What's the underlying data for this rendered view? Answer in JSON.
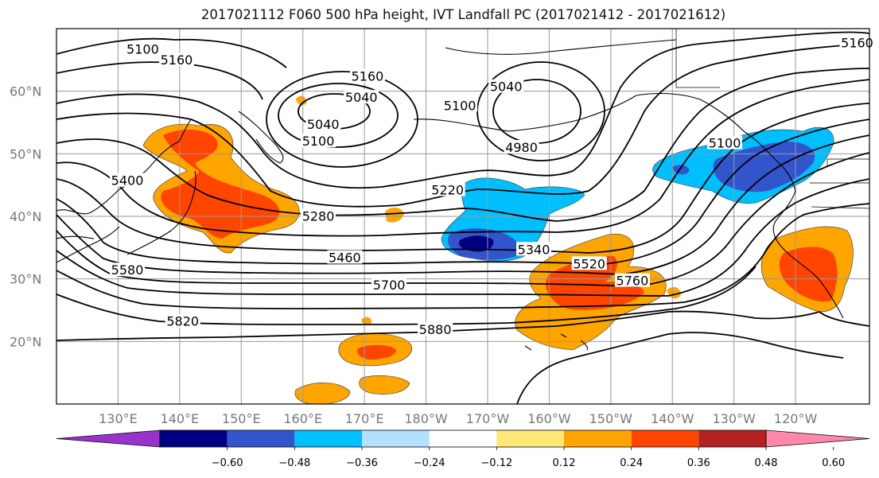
{
  "title": "2017021112 F060 500 hPa height, IVT Landfall PC (2017021412 - 2017021612)",
  "lat_ticks": [
    {
      "label": "60°N",
      "lat": 60
    },
    {
      "label": "50°N",
      "lat": 50
    },
    {
      "label": "40°N",
      "lat": 40
    },
    {
      "label": "30°N",
      "lat": 30
    },
    {
      "label": "20°N",
      "lat": 20
    }
  ],
  "lon_ticks": [
    {
      "label": "130°E",
      "lon": 130
    },
    {
      "label": "140°E",
      "lon": 140
    },
    {
      "label": "150°E",
      "lon": 150
    },
    {
      "label": "160°E",
      "lon": 160
    },
    {
      "label": "170°E",
      "lon": 170
    },
    {
      "label": "180°W",
      "lon": 180
    },
    {
      "label": "170°W",
      "lon": 190
    },
    {
      "label": "160°W",
      "lon": 200
    },
    {
      "label": "150°W",
      "lon": 210
    },
    {
      "label": "140°W",
      "lon": 220
    },
    {
      "label": "130°W",
      "lon": 230
    },
    {
      "label": "120°W",
      "lon": 240
    }
  ],
  "map_extent": {
    "lon_min": 120,
    "lon_max": 252,
    "lat_min": 10,
    "lat_max": 70
  },
  "contour_labels": [
    {
      "text": "5100",
      "lon": 134,
      "lat": 66.5
    },
    {
      "text": "5160",
      "lon": 139.5,
      "lat": 64.8
    },
    {
      "text": "5160",
      "lon": 170.5,
      "lat": 62.2
    },
    {
      "text": "5040",
      "lon": 169.5,
      "lat": 58.8
    },
    {
      "text": "5040",
      "lon": 163.3,
      "lat": 54.5
    },
    {
      "text": "5100",
      "lon": 162.5,
      "lat": 51.8
    },
    {
      "text": "5100",
      "lon": 185.5,
      "lat": 57.5
    },
    {
      "text": "4980",
      "lon": 195.5,
      "lat": 50.8
    },
    {
      "text": "5400",
      "lon": 131.5,
      "lat": 45.5
    },
    {
      "text": "5220",
      "lon": 183.5,
      "lat": 44
    },
    {
      "text": "5280",
      "lon": 162.5,
      "lat": 39.8
    },
    {
      "text": "5460",
      "lon": 166.8,
      "lat": 33.2
    },
    {
      "text": "5340",
      "lon": 197.5,
      "lat": 34.5
    },
    {
      "text": "5520",
      "lon": 206.5,
      "lat": 32.2
    },
    {
      "text": "5580",
      "lon": 131.5,
      "lat": 31.2
    },
    {
      "text": "5700",
      "lon": 174,
      "lat": 28.8
    },
    {
      "text": "5760",
      "lon": 213.5,
      "lat": 29.5
    },
    {
      "text": "5820",
      "lon": 140.5,
      "lat": 23
    },
    {
      "text": "5880",
      "lon": 181.5,
      "lat": 21.7
    },
    {
      "text": "5040",
      "lon": 193,
      "lat": 60.5
    },
    {
      "text": "5160",
      "lon": 250,
      "lat": 67.5
    },
    {
      "text": "5100",
      "lon": 228.5,
      "lat": 51.5
    }
  ],
  "colorbar": {
    "ticks": [
      "−0.60",
      "−0.48",
      "−0.36",
      "−0.24",
      "−0.12",
      "0.12",
      "0.24",
      "0.36",
      "0.48",
      "0.60"
    ],
    "colors": [
      "#9933cc",
      "#000080",
      "#3355cc",
      "#00bfff",
      "#b3e0ff",
      "#ffffff",
      "#ffe87a",
      "#ffa500",
      "#ff4500",
      "#b22222",
      "#ff88aa"
    ]
  },
  "colors": {
    "pos_light": "#ffe87a",
    "pos_mid": "#ffa500",
    "pos_strong": "#ff4500",
    "neg_light": "#b3e0ff",
    "neg_mid": "#00bfff",
    "neg_strong": "#3355cc",
    "neg_max": "#000080"
  }
}
